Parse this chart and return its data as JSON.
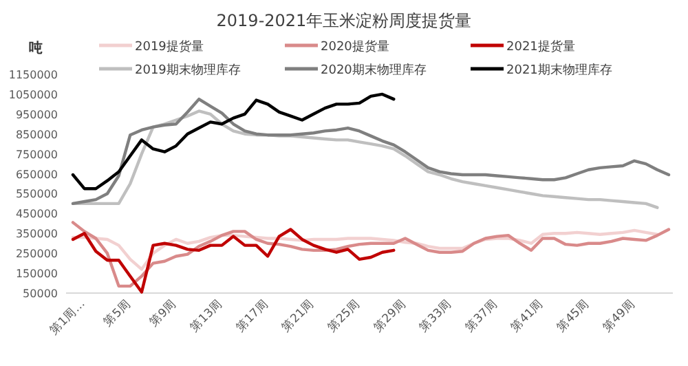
{
  "chart_data": {
    "type": "line",
    "title": "2019-2021年玉米淀粉周度提货量",
    "ylabel": "吨",
    "legend": "top",
    "categories": [
      "第1周…",
      null,
      null,
      null,
      "第5周",
      null,
      null,
      null,
      "第9周",
      null,
      null,
      null,
      "第13周",
      null,
      null,
      null,
      "第17周",
      null,
      null,
      null,
      "第21周",
      null,
      null,
      null,
      "第25周",
      null,
      null,
      null,
      "第29周",
      null,
      null,
      null,
      "第33周",
      null,
      null,
      null,
      "第37周",
      null,
      null,
      null,
      "第41周",
      null,
      null,
      null,
      "第45周",
      null,
      null,
      null,
      "第49周",
      null,
      null,
      null,
      null
    ],
    "ylim": [
      50000,
      1150000
    ],
    "yticks": [
      50000,
      150000,
      250000,
      350000,
      450000,
      550000,
      650000,
      750000,
      850000,
      950000,
      1050000,
      1150000
    ],
    "series": [
      {
        "name": "2019提货量",
        "color": "#f2d0d0",
        "values": [
          330000,
          330000,
          325000,
          320000,
          290000,
          220000,
          170000,
          250000,
          290000,
          320000,
          300000,
          310000,
          330000,
          340000,
          340000,
          335000,
          330000,
          325000,
          325000,
          320000,
          315000,
          320000,
          320000,
          320000,
          325000,
          325000,
          325000,
          320000,
          315000,
          305000,
          300000,
          285000,
          275000,
          275000,
          275000,
          300000,
          320000,
          325000,
          325000,
          315000,
          300000,
          345000,
          350000,
          350000,
          355000,
          350000,
          345000,
          350000,
          355000,
          365000,
          355000,
          345000,
          null
        ]
      },
      {
        "name": "2020提货量",
        "color": "#d98a8a",
        "values": [
          405000,
          360000,
          325000,
          250000,
          85000,
          85000,
          135000,
          200000,
          210000,
          235000,
          245000,
          285000,
          310000,
          340000,
          360000,
          360000,
          320000,
          300000,
          295000,
          285000,
          270000,
          265000,
          265000,
          270000,
          285000,
          295000,
          300000,
          300000,
          300000,
          325000,
          295000,
          265000,
          255000,
          255000,
          260000,
          300000,
          325000,
          335000,
          340000,
          300000,
          265000,
          325000,
          325000,
          295000,
          290000,
          300000,
          300000,
          310000,
          325000,
          320000,
          315000,
          340000,
          370000
        ]
      },
      {
        "name": "2021提货量",
        "color": "#c00000",
        "values": [
          320000,
          350000,
          260000,
          215000,
          215000,
          135000,
          55000,
          290000,
          300000,
          290000,
          270000,
          265000,
          290000,
          290000,
          335000,
          290000,
          290000,
          235000,
          335000,
          370000,
          320000,
          290000,
          270000,
          255000,
          270000,
          220000,
          230000,
          255000,
          265000,
          null,
          null,
          null,
          null,
          null,
          null,
          null,
          null,
          null,
          null,
          null,
          null,
          null,
          null,
          null,
          null,
          null,
          null,
          null,
          null,
          null,
          null,
          null,
          null
        ]
      },
      {
        "name": "2019期末物理库存",
        "color": "#bfbfbf",
        "values": [
          500000,
          500000,
          500000,
          500000,
          500000,
          600000,
          750000,
          885000,
          900000,
          920000,
          940000,
          965000,
          950000,
          900000,
          865000,
          850000,
          845000,
          845000,
          840000,
          840000,
          835000,
          830000,
          825000,
          820000,
          820000,
          810000,
          800000,
          790000,
          775000,
          740000,
          700000,
          660000,
          645000,
          625000,
          610000,
          600000,
          590000,
          580000,
          570000,
          560000,
          550000,
          540000,
          535000,
          530000,
          525000,
          520000,
          520000,
          515000,
          510000,
          505000,
          500000,
          480000,
          null
        ]
      },
      {
        "name": "2020期末物理库存",
        "color": "#7f7f7f",
        "values": [
          500000,
          510000,
          520000,
          550000,
          640000,
          845000,
          870000,
          885000,
          895000,
          900000,
          960000,
          1025000,
          990000,
          955000,
          900000,
          865000,
          850000,
          845000,
          845000,
          845000,
          850000,
          855000,
          865000,
          870000,
          880000,
          865000,
          840000,
          815000,
          795000,
          760000,
          720000,
          680000,
          660000,
          650000,
          645000,
          645000,
          645000,
          640000,
          635000,
          630000,
          625000,
          620000,
          620000,
          630000,
          650000,
          670000,
          680000,
          685000,
          690000,
          715000,
          700000,
          670000,
          645000
        ]
      },
      {
        "name": "2021期末物理库存",
        "color": "#000000",
        "values": [
          645000,
          575000,
          575000,
          615000,
          660000,
          740000,
          820000,
          775000,
          760000,
          790000,
          850000,
          880000,
          910000,
          900000,
          930000,
          950000,
          1020000,
          1000000,
          960000,
          940000,
          920000,
          950000,
          980000,
          1000000,
          1000000,
          1005000,
          1040000,
          1050000,
          1025000,
          null,
          null,
          null,
          null,
          null,
          null,
          null,
          null,
          null,
          null,
          null,
          null,
          null,
          null,
          null,
          null,
          null,
          null,
          null,
          null,
          null,
          null,
          null,
          null
        ]
      }
    ]
  }
}
